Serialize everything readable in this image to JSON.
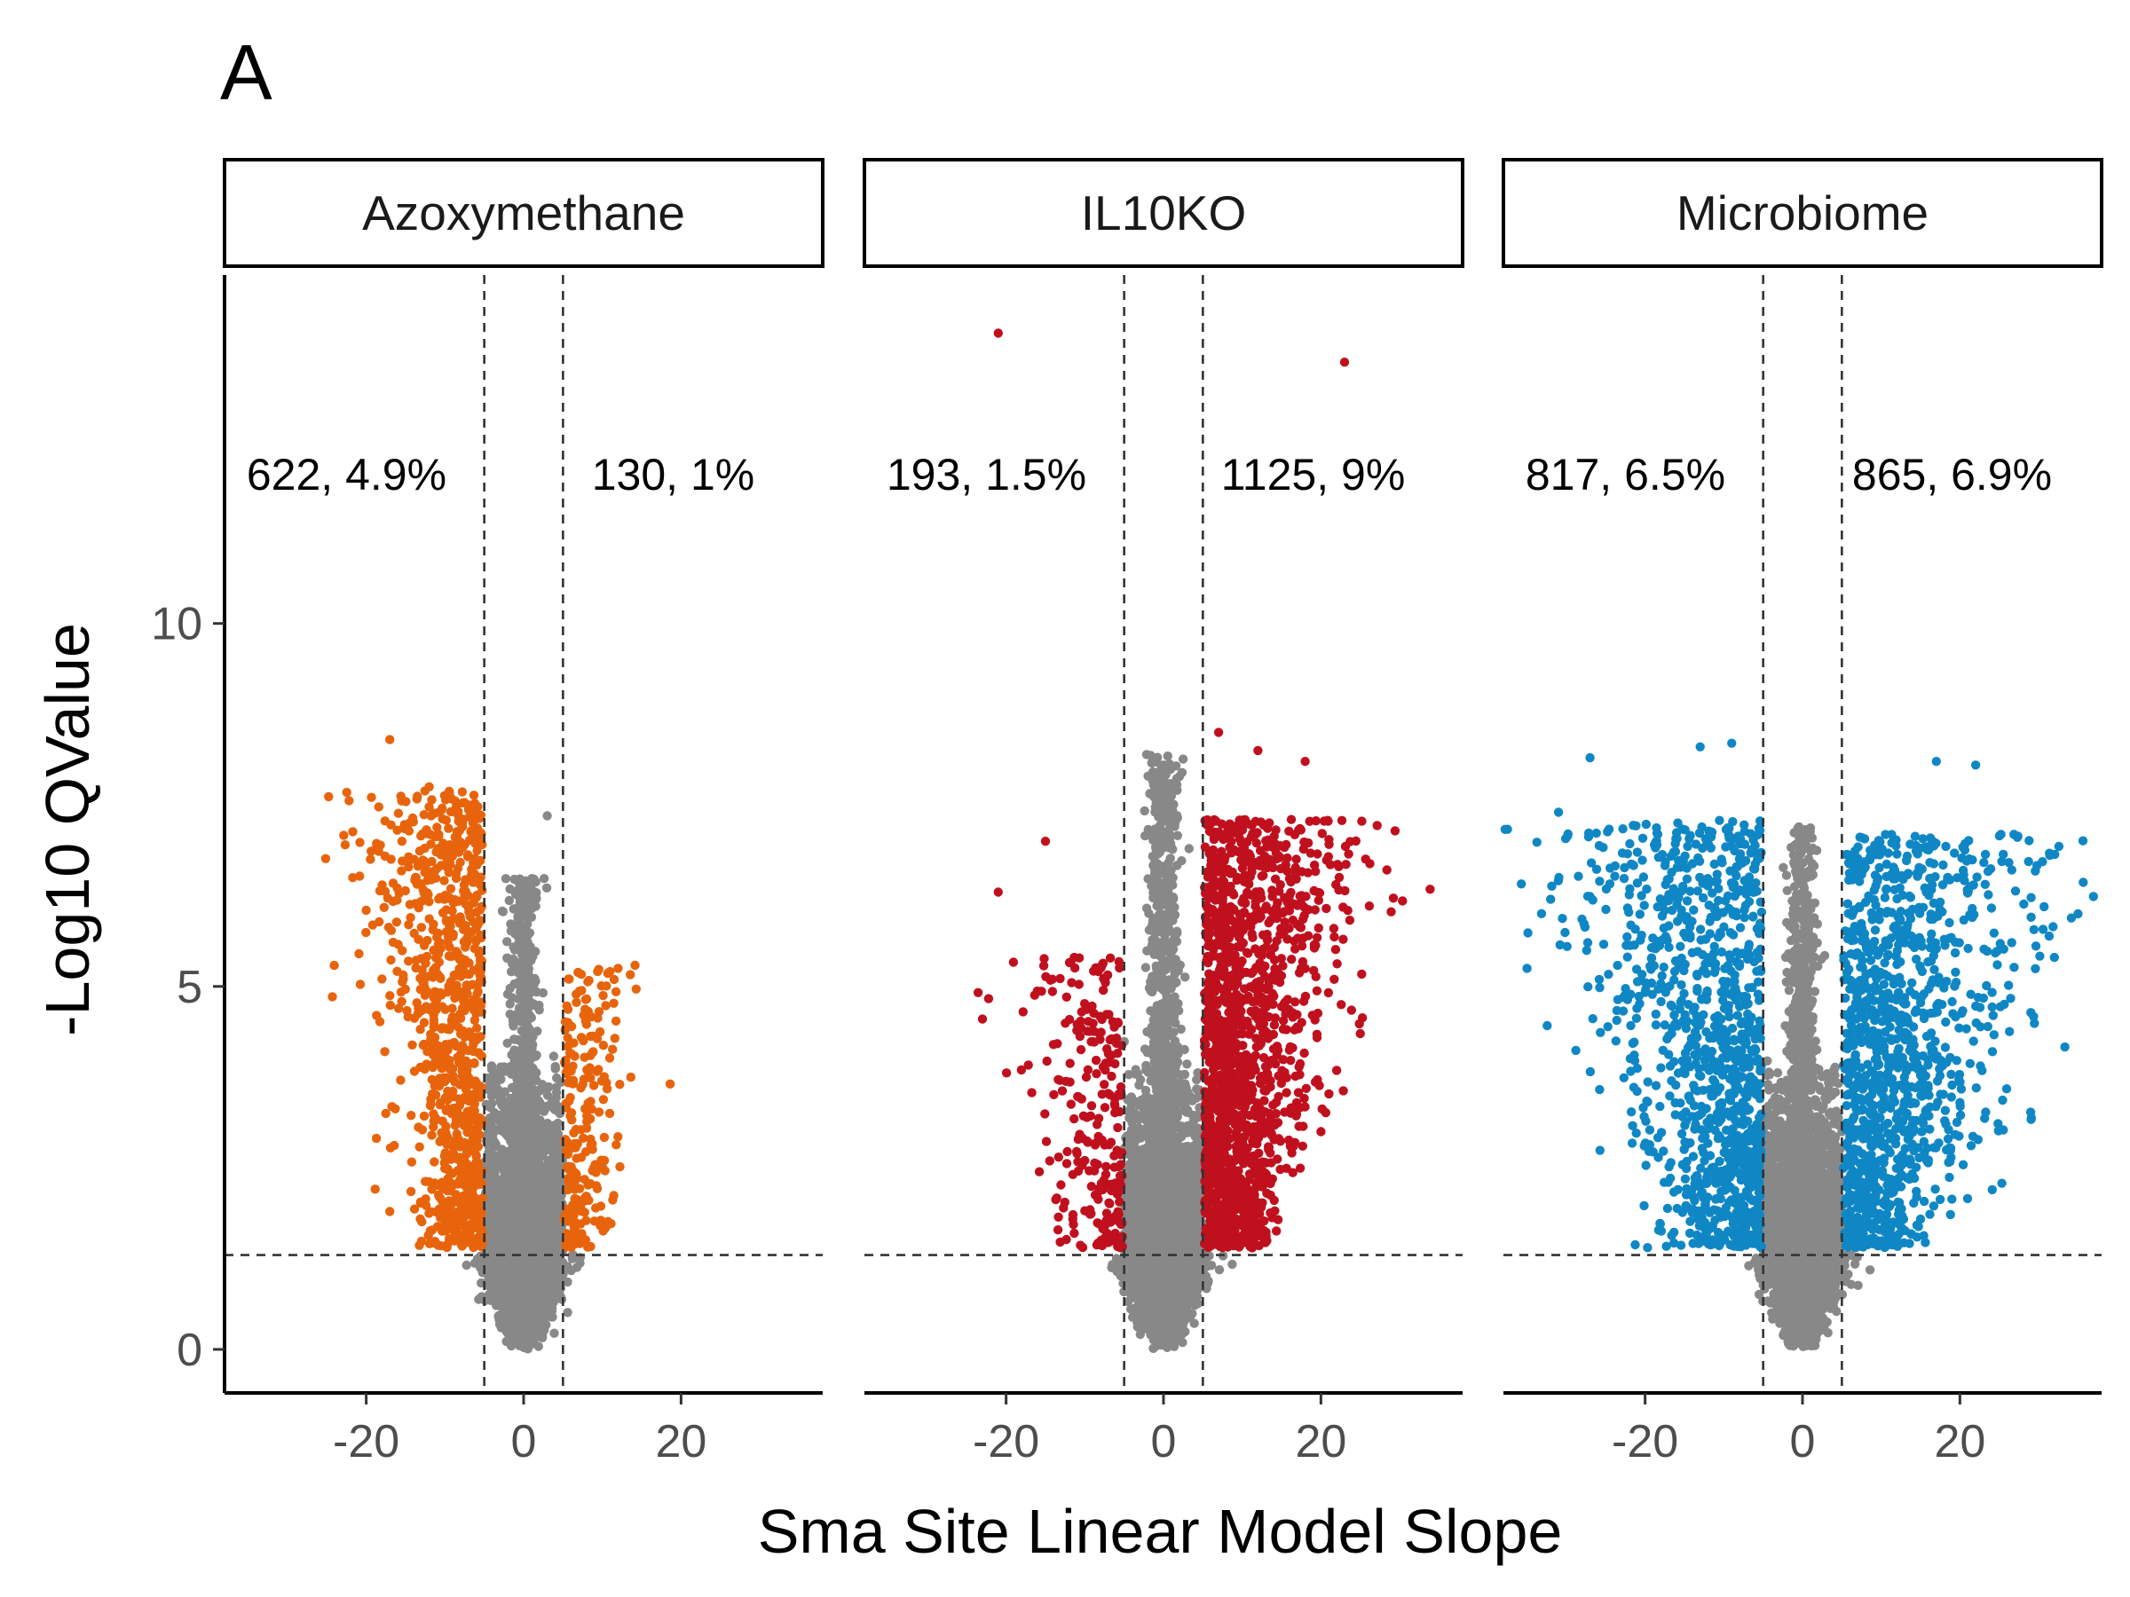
{
  "figure": {
    "panel_tag": "A"
  },
  "chart_data": {
    "type": "scatter",
    "subtype": "faceted volcano plot",
    "xlabel": "Sma Site Linear Model Slope",
    "ylabel": "-Log10 QValue",
    "xlim": [
      -38,
      38
    ],
    "ylim": [
      -0.6,
      14.8
    ],
    "x_ticks": [
      -20,
      0,
      20
    ],
    "y_ticks": [
      0,
      5,
      10
    ],
    "x_tick_labels": [
      "-20",
      "0",
      "20"
    ],
    "y_tick_labels": [
      "0",
      "5",
      "10"
    ],
    "slope_thresholds": [
      -5,
      5
    ],
    "qvalue_threshold_neglog10": 1.3,
    "grid": false,
    "legend": "none",
    "nonsignificant_color": "#888888",
    "facets": [
      {
        "name": "Azoxymethane",
        "color": "#E8640C",
        "down": {
          "count": 622,
          "pct": "4.9%",
          "label": "622, 4.9%"
        },
        "up": {
          "count": 130,
          "pct": "1%",
          "label": "130, 1%"
        },
        "approx_x_range": [
          -18,
          12
        ],
        "approx_max_y": 8.4,
        "outliers": [
          {
            "x": -17,
            "y": 8.4
          },
          {
            "x": -12,
            "y": 7.75
          },
          {
            "x": -7,
            "y": 7.5
          },
          {
            "x": 3,
            "y": 7.35
          },
          {
            "x": -20,
            "y": 6.05
          },
          {
            "x": 12,
            "y": 5.25
          },
          {
            "x": -17,
            "y": 1.9
          }
        ]
      },
      {
        "name": "IL10KO",
        "color": "#C0101E",
        "down": {
          "count": 193,
          "pct": "1.5%",
          "label": "193, 1.5%"
        },
        "up": {
          "count": 1125,
          "pct": "9%",
          "label": "1125, 9%"
        },
        "approx_x_range": [
          -23,
          25
        ],
        "approx_max_y": 14.0,
        "outliers": [
          {
            "x": -21,
            "y": 14.0
          },
          {
            "x": 23,
            "y": 13.6
          },
          {
            "x": -15,
            "y": 7.0
          },
          {
            "x": -21,
            "y": 6.3
          },
          {
            "x": -23,
            "y": 4.55
          },
          {
            "x": 25,
            "y": 4.35
          },
          {
            "x": 7,
            "y": 8.5
          },
          {
            "x": 12,
            "y": 8.25
          },
          {
            "x": 18,
            "y": 8.1
          },
          {
            "x": 20,
            "y": 3.0
          }
        ]
      },
      {
        "name": "Microbiome",
        "color": "#1087C5",
        "down": {
          "count": 817,
          "pct": "6.5%",
          "label": "817, 6.5%"
        },
        "up": {
          "count": 865,
          "pct": "6.9%",
          "label": "865, 6.9%"
        },
        "approx_x_range": [
          -35,
          35
        ],
        "approx_max_y": 8.3,
        "outliers": [
          {
            "x": -35,
            "y": 5.25
          },
          {
            "x": -32,
            "y": 6.2
          },
          {
            "x": -31,
            "y": 7.4
          },
          {
            "x": -27,
            "y": 8.15
          },
          {
            "x": -13,
            "y": 8.3
          },
          {
            "x": -9,
            "y": 8.35
          },
          {
            "x": 17,
            "y": 8.1
          },
          {
            "x": 22,
            "y": 8.05
          },
          {
            "x": 35,
            "y": 6.0
          },
          {
            "x": 32,
            "y": 5.4
          },
          {
            "x": 20,
            "y": 3.4
          }
        ]
      }
    ]
  }
}
